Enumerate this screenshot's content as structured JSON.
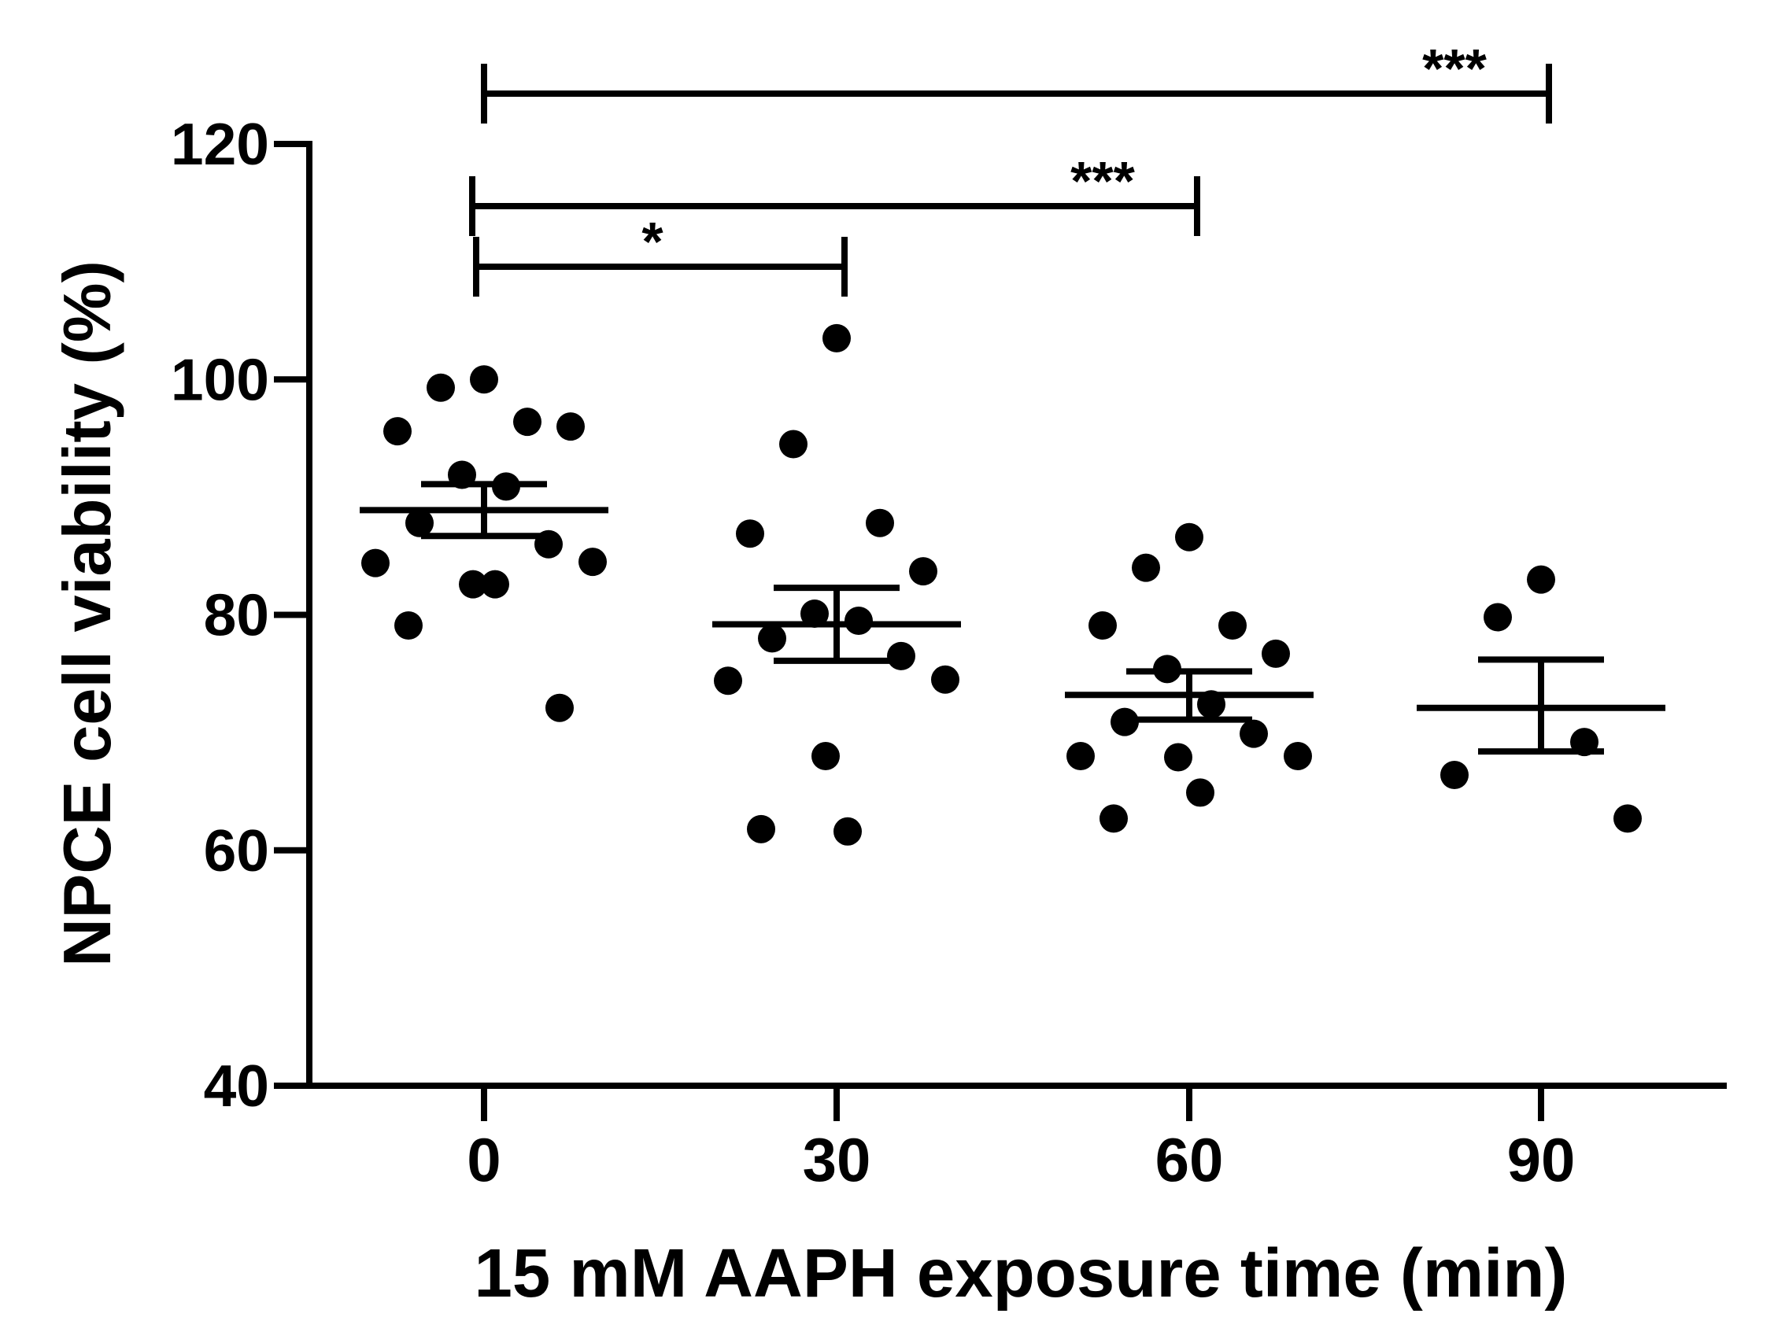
{
  "chart_data": {
    "type": "scatter",
    "title": "",
    "xlabel": "15 mM AAPH exposure time (min)",
    "ylabel": "NPCE cell viability (%)",
    "ylim": [
      40,
      120
    ],
    "yticks": [
      40,
      60,
      80,
      100,
      120
    ],
    "categories": [
      "0",
      "30",
      "60",
      "90"
    ],
    "grid": false,
    "color": "#000000",
    "groups": [
      {
        "category": "0",
        "mean": 88.9,
        "sem_upper": 91.1,
        "sem_lower": 86.7,
        "points": [
          100,
          99.3,
          96.4,
          95.6,
          96.0,
          91.9,
          90.9,
          87.8,
          86.0,
          84.4,
          84.5,
          82.6,
          82.6,
          79.1,
          72.1
        ]
      },
      {
        "category": "30",
        "mean": 79.2,
        "sem_upper": 82.3,
        "sem_lower": 76.1,
        "points": [
          103.5,
          94.5,
          87.8,
          86.9,
          83.7,
          80.1,
          79.5,
          78.0,
          76.5,
          74.4,
          74.5,
          68.0,
          61.6,
          61.8
        ]
      },
      {
        "category": "60",
        "mean": 73.2,
        "sem_upper": 75.2,
        "sem_lower": 71.1,
        "points": [
          86.6,
          84.0,
          79.1,
          79.1,
          76.7,
          75.4,
          72.4,
          70.9,
          69.9,
          68.0,
          68.0,
          67.9,
          64.9,
          62.7
        ]
      },
      {
        "category": "90",
        "mean": 72.1,
        "sem_upper": 76.2,
        "sem_lower": 68.4,
        "points": [
          83.0,
          79.8,
          69.2,
          66.4,
          62.7
        ]
      }
    ],
    "annotations": [
      {
        "from": "0",
        "to": "30",
        "label": "*"
      },
      {
        "from": "0",
        "to": "60",
        "label": "***"
      },
      {
        "from": "0",
        "to": "90",
        "label": "***"
      }
    ]
  }
}
